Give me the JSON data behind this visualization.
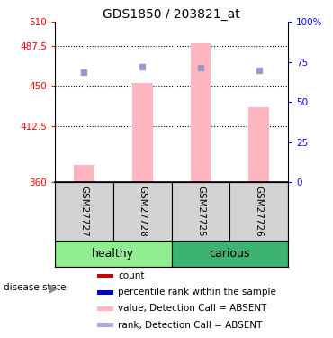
{
  "title": "GDS1850 / 203821_at",
  "samples": [
    "GSM27727",
    "GSM27728",
    "GSM27725",
    "GSM27726"
  ],
  "groups": [
    "healthy",
    "healthy",
    "carious",
    "carious"
  ],
  "bar_values": [
    376,
    453,
    490,
    430
  ],
  "bar_color": "#FFB6C1",
  "blue_square_values": [
    463,
    468,
    467,
    465
  ],
  "blue_square_color": "#9999CC",
  "ylim_left": [
    360,
    510
  ],
  "yticks_left": [
    360,
    412.5,
    450,
    487.5,
    510
  ],
  "ytick_labels_left": [
    "360",
    "412.5",
    "450",
    "487.5",
    "510"
  ],
  "ylim_right": [
    0,
    100
  ],
  "yticks_right": [
    0,
    25,
    50,
    75,
    100
  ],
  "ytick_labels_right": [
    "0",
    "25",
    "50",
    "75",
    "100%"
  ],
  "legend_items": [
    {
      "label": "count",
      "color": "#CC0000"
    },
    {
      "label": "percentile rank within the sample",
      "color": "#0000CC"
    },
    {
      "label": "value, Detection Call = ABSENT",
      "color": "#FFB6C1"
    },
    {
      "label": "rank, Detection Call = ABSENT",
      "color": "#AAAADD"
    }
  ],
  "disease_label": "disease state",
  "healthy_color": "#90EE90",
  "carious_color": "#3CB371",
  "sample_bg_color": "#D3D3D3"
}
